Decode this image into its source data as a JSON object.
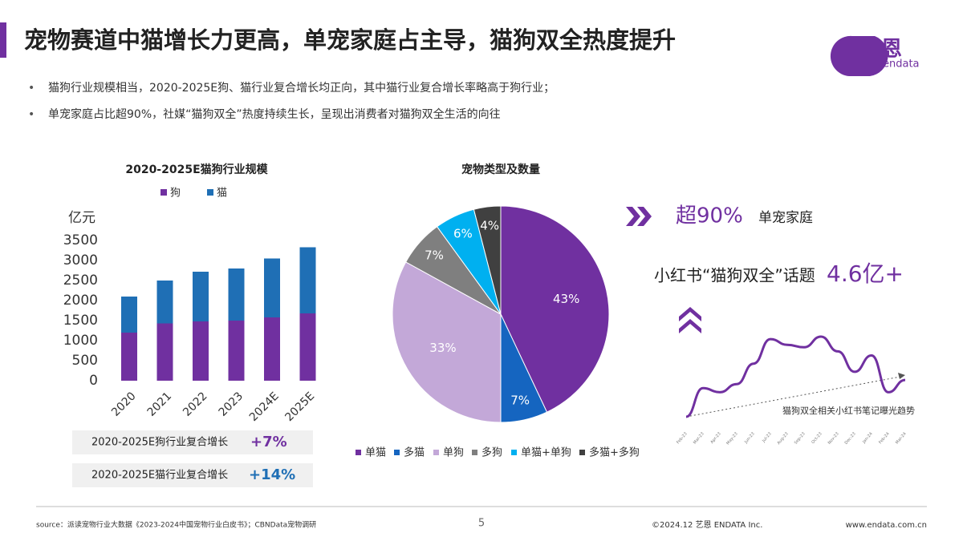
{
  "header": {
    "title": "宠物赛道中猫增长力更高，单宠家庭占主导，猫狗双全热度提升",
    "logo": "艺恩",
    "logo_sub": "endata"
  },
  "bullets": [
    "猫狗行业规模相当，2020-2025E狗、猫行业复合增长均正向，其中猫行业复合增长率略高于狗行业；",
    "单宠家庭占比超90%，社媒“猫狗双全”热度持续生长，呈现出消费者对猫狗双全生活的向往"
  ],
  "growth_boxes": [
    {
      "label": "2020-2025E狗行业复合增长",
      "value": "+7%"
    },
    {
      "label": "2020-2025E猫行业复合增长",
      "value": "+14%"
    }
  ],
  "callouts": {
    "single_value": "超90%",
    "single_label": "单宠家庭",
    "topic_label": "小红书“猫狗双全”话题",
    "topic_value": "4.6亿+"
  },
  "chart_data": [
    {
      "type": "bar",
      "stacked": true,
      "title": "2020-2025E猫狗行业规模",
      "y_label": "亿元",
      "categories": [
        "2020",
        "2021",
        "2022",
        "2023",
        "2024E",
        "2025E"
      ],
      "series": [
        {
          "name": "狗",
          "color": "#7030a0",
          "values": [
            1200,
            1430,
            1480,
            1500,
            1580,
            1680
          ]
        },
        {
          "name": "猫",
          "color": "#1f6fb5",
          "values": [
            900,
            1070,
            1240,
            1300,
            1470,
            1650
          ]
        }
      ],
      "ylim": [
        0,
        3500
      ],
      "yticks": [
        0,
        500,
        1000,
        1500,
        2000,
        2500,
        3000,
        3500
      ]
    },
    {
      "type": "pie",
      "title": "宠物类型及数量",
      "categories": [
        "单猫",
        "多猫",
        "单狗",
        "多狗",
        "单猫+单狗",
        "多猫+多狗"
      ],
      "values": [
        43,
        7,
        33,
        7,
        6,
        4
      ],
      "value_labels": [
        "43%",
        "7%",
        "33%",
        "7%",
        "6%",
        "4%"
      ],
      "colors": [
        "#7030a0",
        "#1565c0",
        "#c3a8d8",
        "#7f7f7f",
        "#00b0f0",
        "#404040"
      ]
    },
    {
      "type": "line",
      "title": "猫狗双全相关小红书笔记曝光趋势",
      "color": "#7030a0",
      "categories": [
        "Feb-23",
        "Mar-23",
        "Apr-23",
        "May-23",
        "Jun-23",
        "Jul-23",
        "Aug-23",
        "Sep-23",
        "Oct-23",
        "Nov-23",
        "Dec-23",
        "Jan-24",
        "Feb-24",
        "Mar-24"
      ],
      "values": [
        0,
        35,
        30,
        40,
        65,
        95,
        88,
        85,
        98,
        80,
        55,
        75,
        30,
        45
      ],
      "ylim": [
        0,
        100
      ]
    }
  ],
  "footer": {
    "source": "source：派读宠物行业大数据《2023-2024中国宠物行业白皮书》；CBNData宠物调研",
    "page": "5",
    "copyright": "©2024.12 艺恩 ENDATA Inc.",
    "url": "www.endata.com.cn"
  }
}
